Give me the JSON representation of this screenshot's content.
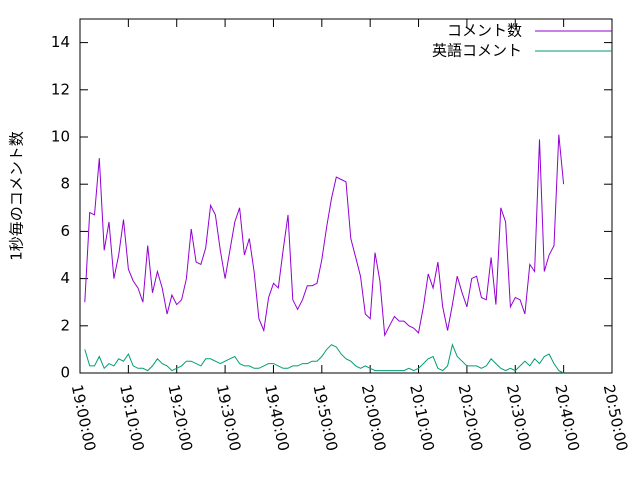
{
  "chart_data": {
    "type": "line",
    "ylabel": "1秒毎のコメント数",
    "x": [
      "19:01:00",
      "19:02:00",
      "19:03:00",
      "19:04:00",
      "19:05:00",
      "19:06:00",
      "19:07:00",
      "19:08:00",
      "19:09:00",
      "19:10:00",
      "19:11:00",
      "19:12:00",
      "19:13:00",
      "19:14:00",
      "19:15:00",
      "19:16:00",
      "19:17:00",
      "19:18:00",
      "19:19:00",
      "19:20:00",
      "19:21:00",
      "19:22:00",
      "19:23:00",
      "19:24:00",
      "19:25:00",
      "19:26:00",
      "19:27:00",
      "19:28:00",
      "19:29:00",
      "19:30:00",
      "19:31:00",
      "19:32:00",
      "19:33:00",
      "19:34:00",
      "19:35:00",
      "19:36:00",
      "19:37:00",
      "19:38:00",
      "19:39:00",
      "19:40:00",
      "19:41:00",
      "19:42:00",
      "19:43:00",
      "19:44:00",
      "19:45:00",
      "19:46:00",
      "19:47:00",
      "19:48:00",
      "19:49:00",
      "19:50:00",
      "19:51:00",
      "19:52:00",
      "19:53:00",
      "19:54:00",
      "19:55:00",
      "19:56:00",
      "19:57:00",
      "19:58:00",
      "19:59:00",
      "20:00:00",
      "20:01:00",
      "20:02:00",
      "20:03:00",
      "20:04:00",
      "20:05:00",
      "20:06:00",
      "20:07:00",
      "20:08:00",
      "20:09:00",
      "20:10:00",
      "20:11:00",
      "20:12:00",
      "20:13:00",
      "20:14:00",
      "20:15:00",
      "20:16:00",
      "20:17:00",
      "20:18:00",
      "20:19:00",
      "20:20:00",
      "20:21:00",
      "20:22:00",
      "20:23:00",
      "20:24:00",
      "20:25:00",
      "20:26:00",
      "20:27:00",
      "20:28:00",
      "20:29:00",
      "20:30:00",
      "20:31:00",
      "20:32:00",
      "20:33:00",
      "20:34:00",
      "20:35:00",
      "20:36:00",
      "20:37:00",
      "20:38:00",
      "20:39:00",
      "20:40:00"
    ],
    "series": [
      {
        "name": "コメント数",
        "color": "#9400d3",
        "values": [
          3.0,
          6.8,
          6.7,
          9.1,
          5.2,
          6.4,
          4.0,
          5.0,
          6.5,
          4.4,
          3.9,
          3.6,
          3.0,
          5.4,
          3.4,
          4.3,
          3.6,
          2.5,
          3.3,
          2.9,
          3.1,
          4.0,
          6.1,
          4.7,
          4.6,
          5.3,
          7.1,
          6.7,
          5.2,
          4.0,
          5.2,
          6.4,
          7.0,
          5.0,
          5.7,
          4.3,
          2.3,
          1.8,
          3.2,
          3.8,
          3.6,
          5.2,
          6.7,
          3.1,
          2.7,
          3.1,
          3.7,
          3.7,
          3.8,
          4.8,
          6.2,
          7.4,
          8.3,
          8.2,
          8.1,
          5.7,
          4.9,
          4.1,
          2.5,
          2.3,
          5.1,
          3.9,
          1.6,
          2.0,
          2.4,
          2.2,
          2.2,
          2.0,
          1.9,
          1.7,
          2.8,
          4.2,
          3.6,
          4.7,
          2.8,
          1.8,
          2.9,
          4.1,
          3.4,
          2.8,
          4.0,
          4.1,
          3.2,
          3.1,
          4.9,
          2.9,
          7.0,
          6.4,
          2.8,
          3.2,
          3.1,
          2.5,
          4.6,
          4.3,
          9.9,
          4.3,
          5.0,
          5.4,
          10.1,
          8.0
        ]
      },
      {
        "name": "英語コメント",
        "color": "#009e73",
        "values": [
          1.0,
          0.3,
          0.3,
          0.7,
          0.2,
          0.4,
          0.3,
          0.6,
          0.5,
          0.8,
          0.3,
          0.2,
          0.2,
          0.1,
          0.3,
          0.6,
          0.4,
          0.3,
          0.1,
          0.2,
          0.3,
          0.5,
          0.5,
          0.4,
          0.3,
          0.6,
          0.6,
          0.5,
          0.4,
          0.5,
          0.6,
          0.7,
          0.4,
          0.3,
          0.3,
          0.2,
          0.2,
          0.3,
          0.4,
          0.4,
          0.3,
          0.2,
          0.2,
          0.3,
          0.3,
          0.4,
          0.4,
          0.5,
          0.5,
          0.7,
          1.0,
          1.2,
          1.1,
          0.8,
          0.6,
          0.5,
          0.3,
          0.2,
          0.3,
          0.2,
          0.1,
          0.1,
          0.1,
          0.1,
          0.1,
          0.1,
          0.1,
          0.2,
          0.1,
          0.2,
          0.4,
          0.6,
          0.7,
          0.2,
          0.1,
          0.3,
          1.2,
          0.7,
          0.5,
          0.3,
          0.3,
          0.3,
          0.2,
          0.3,
          0.6,
          0.4,
          0.2,
          0.1,
          0.2,
          0.1,
          0.3,
          0.5,
          0.3,
          0.6,
          0.4,
          0.7,
          0.8,
          0.4,
          0.1,
          0.0
        ]
      }
    ],
    "xlim": [
      "19:00:00",
      "20:50:00"
    ],
    "xticks": [
      "19:00:00",
      "19:10:00",
      "19:20:00",
      "19:30:00",
      "19:40:00",
      "19:50:00",
      "20:00:00",
      "20:10:00",
      "20:20:00",
      "20:30:00",
      "20:40:00",
      "20:50:00"
    ],
    "ylim": [
      0,
      15
    ],
    "yticks": [
      0,
      2,
      4,
      6,
      8,
      10,
      12,
      14
    ],
    "legend": "top right"
  }
}
